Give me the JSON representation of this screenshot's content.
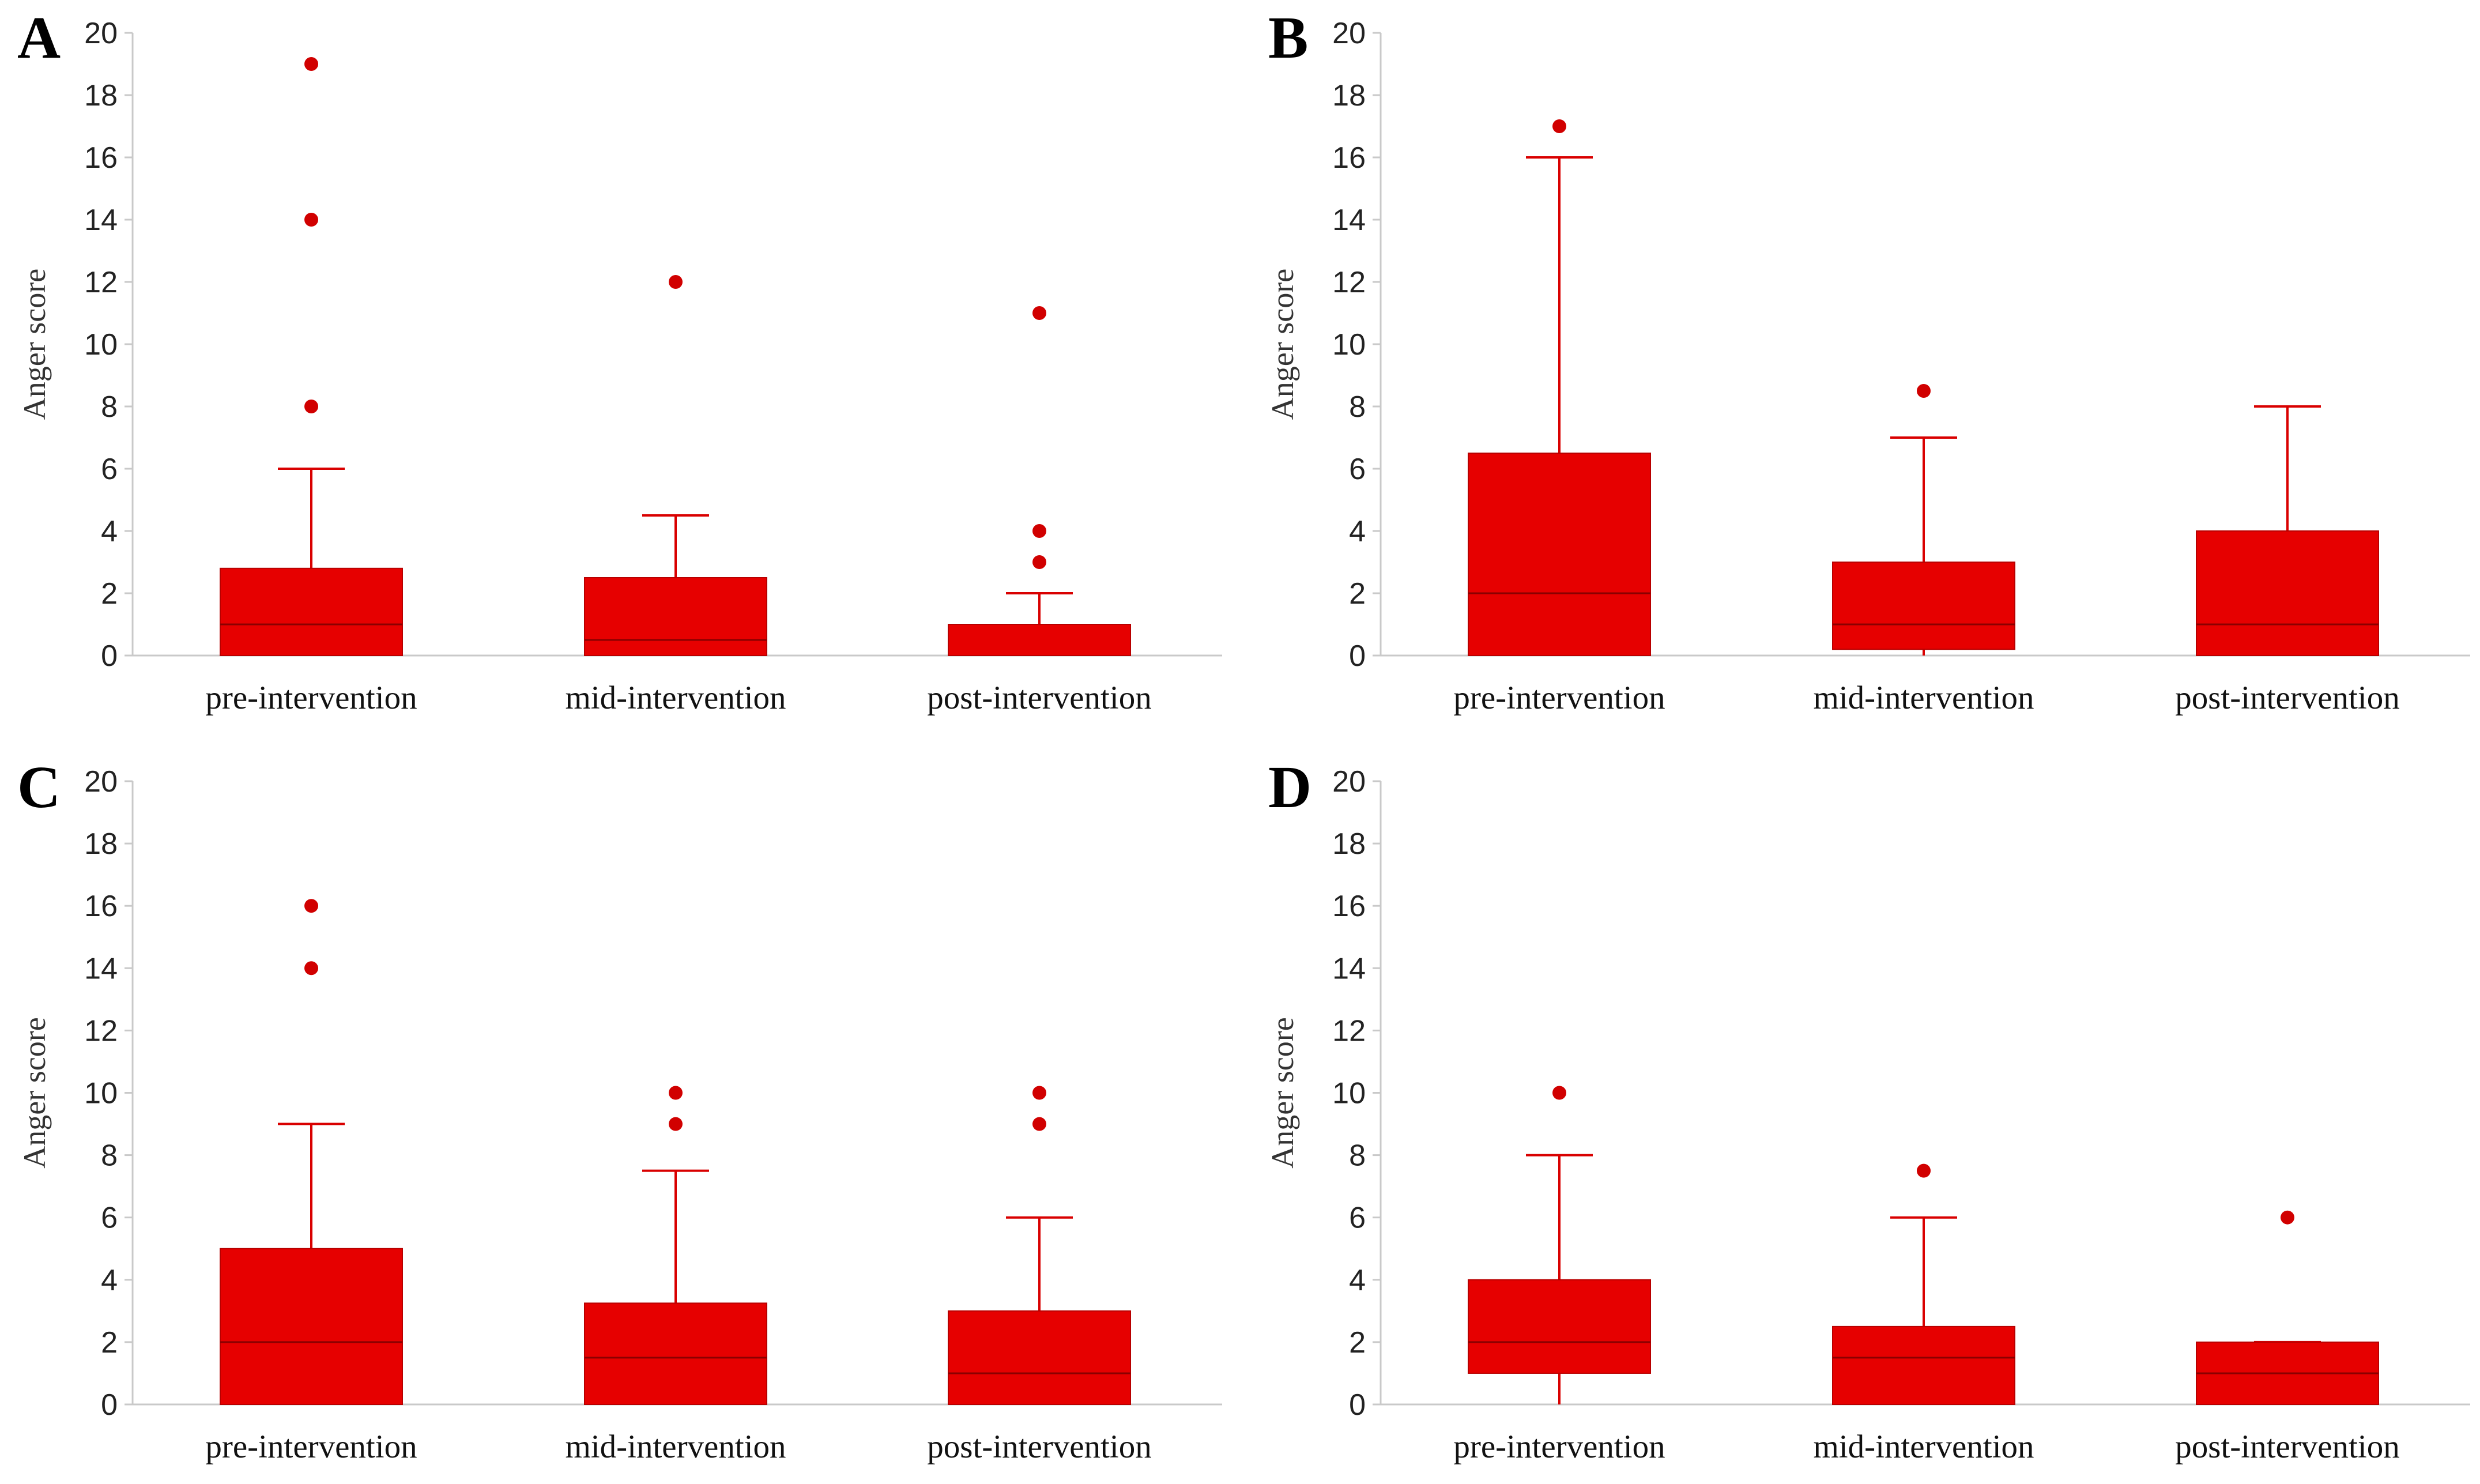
{
  "chart_data": [
    {
      "type": "boxplot",
      "panel": "A",
      "ylabel": "Anger score",
      "ylim": [
        0,
        20
      ],
      "yticks": [
        0,
        2,
        4,
        6,
        8,
        10,
        12,
        14,
        16,
        18,
        20
      ],
      "categories": [
        "pre-intervention",
        "mid-intervention",
        "post-intervention"
      ],
      "boxes": [
        {
          "min": 0,
          "q1": 0,
          "median": 1,
          "q3": 2.8,
          "max": 6,
          "outliers": [
            8,
            14,
            19
          ]
        },
        {
          "min": 0,
          "q1": 0,
          "median": 0.5,
          "q3": 2.5,
          "max": 4.5,
          "outliers": [
            12
          ]
        },
        {
          "min": 0,
          "q1": 0,
          "median": 0,
          "q3": 1,
          "max": 2,
          "outliers": [
            3,
            4,
            11
          ]
        }
      ]
    },
    {
      "type": "boxplot",
      "panel": "B",
      "ylabel": "Anger score",
      "ylim": [
        0,
        20
      ],
      "yticks": [
        0,
        2,
        4,
        6,
        8,
        10,
        12,
        14,
        16,
        18,
        20
      ],
      "categories": [
        "pre-intervention",
        "mid-intervention",
        "post-intervention"
      ],
      "boxes": [
        {
          "min": 0,
          "q1": 0,
          "median": 2,
          "q3": 6.5,
          "max": 16,
          "outliers": [
            17
          ]
        },
        {
          "min": 0,
          "q1": 0.2,
          "median": 1,
          "q3": 3,
          "max": 7,
          "outliers": [
            8.5
          ]
        },
        {
          "min": 0,
          "q1": 0,
          "median": 1,
          "q3": 4,
          "max": 8,
          "outliers": []
        }
      ]
    },
    {
      "type": "boxplot",
      "panel": "C",
      "ylabel": "Anger score",
      "ylim": [
        0,
        20
      ],
      "yticks": [
        0,
        2,
        4,
        6,
        8,
        10,
        12,
        14,
        16,
        18,
        20
      ],
      "categories": [
        "pre-intervention",
        "mid-intervention",
        "post-intervention"
      ],
      "boxes": [
        {
          "min": 0,
          "q1": 0,
          "median": 2,
          "q3": 5,
          "max": 9,
          "outliers": [
            14,
            16
          ]
        },
        {
          "min": 0,
          "q1": 0,
          "median": 1.5,
          "q3": 3.25,
          "max": 7.5,
          "outliers": [
            9,
            10
          ]
        },
        {
          "min": 0,
          "q1": 0,
          "median": 1,
          "q3": 3,
          "max": 6,
          "outliers": [
            9,
            10
          ]
        }
      ]
    },
    {
      "type": "boxplot",
      "panel": "D",
      "ylabel": "Anger score",
      "ylim": [
        0,
        20
      ],
      "yticks": [
        0,
        2,
        4,
        6,
        8,
        10,
        12,
        14,
        16,
        18,
        20
      ],
      "categories": [
        "pre-intervention",
        "mid-intervention",
        "post-intervention"
      ],
      "boxes": [
        {
          "min": 0,
          "q1": 1,
          "median": 2,
          "q3": 4,
          "max": 8,
          "outliers": [
            10
          ]
        },
        {
          "min": 0,
          "q1": 0,
          "median": 1.5,
          "q3": 2.5,
          "max": 6,
          "outliers": [
            7.5
          ]
        },
        {
          "min": 0,
          "q1": 0,
          "median": 1,
          "q3": 2,
          "max": 2,
          "outliers": [
            6
          ]
        }
      ]
    }
  ],
  "colors": {
    "box_fill": "#e60000",
    "whisker": "#d90000",
    "outlier": "#d10000",
    "median_line": "#8a0000",
    "axis": "#c9c9c9"
  }
}
